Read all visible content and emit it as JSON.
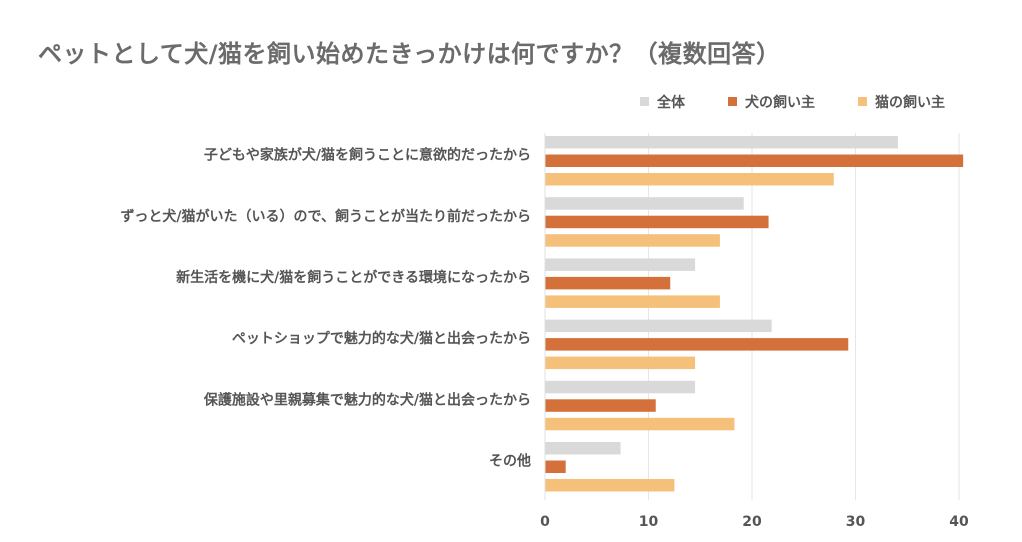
{
  "chart_data": {
    "type": "bar",
    "orientation": "horizontal",
    "title": "ペットとして犬/猫を飼い始めたきっかけは何ですか？（複数回答）",
    "categories": [
      "子どもや家族が犬/猫を飼うことに意欲的だったから",
      "ずっと犬/猫がいた（いる）ので、飼うことが当たり前だったから",
      "新生活を機に犬/猫を飼うことができる環境になったから",
      "ペットショップで魅力的な犬/猫と出会ったから",
      "保護施設や里親募集で魅力的な犬/猫と出会ったから",
      "その他"
    ],
    "series": [
      {
        "name": "全体",
        "color": "#d9d9d9",
        "values": [
          34.1,
          19.2,
          14.5,
          21.9,
          14.5,
          7.3
        ]
      },
      {
        "name": "犬の飼い主",
        "color": "#d4713b",
        "values": [
          40.4,
          21.6,
          12.1,
          29.3,
          10.7,
          2.0
        ]
      },
      {
        "name": "猫の飼い主",
        "color": "#f5c07a",
        "values": [
          27.9,
          16.9,
          16.9,
          14.5,
          18.3,
          12.5
        ]
      }
    ],
    "xlim": [
      0,
      40
    ],
    "xticks": [
      0,
      10,
      20,
      30,
      40
    ],
    "xlabel": "",
    "ylabel": "",
    "grid": true,
    "legend": "top-right"
  }
}
